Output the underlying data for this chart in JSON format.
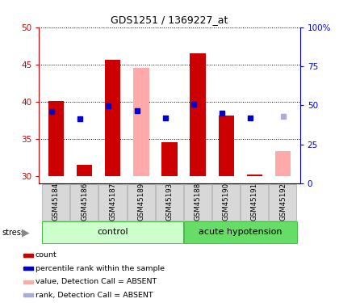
{
  "title": "GDS1251 / 1369227_at",
  "samples": [
    "GSM45184",
    "GSM45186",
    "GSM45187",
    "GSM45189",
    "GSM45193",
    "GSM45188",
    "GSM45190",
    "GSM45191",
    "GSM45192"
  ],
  "red_bars": [
    40.1,
    31.5,
    45.6,
    null,
    34.5,
    46.5,
    38.1,
    30.2,
    null
  ],
  "red_bar_bottom": [
    30,
    30,
    30,
    null,
    30,
    30,
    30,
    30,
    null
  ],
  "pink_bars": [
    null,
    null,
    null,
    44.5,
    null,
    null,
    null,
    null,
    33.3
  ],
  "pink_bar_bottom": [
    null,
    null,
    null,
    30,
    null,
    null,
    null,
    null,
    30
  ],
  "blue_squares": [
    38.7,
    37.7,
    39.4,
    38.8,
    37.8,
    39.6,
    38.4,
    37.8,
    null
  ],
  "light_blue_squares": [
    null,
    null,
    null,
    null,
    null,
    null,
    null,
    null,
    38.0
  ],
  "ylim_left": [
    29,
    50
  ],
  "ylim_right": [
    0,
    100
  ],
  "yticks_left": [
    30,
    35,
    40,
    45,
    50
  ],
  "yticks_right": [
    0,
    25,
    50,
    75,
    100
  ],
  "ytick_labels_right": [
    "0",
    "25",
    "50",
    "75",
    "100%"
  ],
  "bar_width": 0.55,
  "legend_colors": [
    "#cc0000",
    "#0000cc",
    "#ffaaaa",
    "#aaaadd"
  ],
  "legend_labels": [
    "count",
    "percentile rank within the sample",
    "value, Detection Call = ABSENT",
    "rank, Detection Call = ABSENT"
  ],
  "ctrl_color": "#ccffcc",
  "ah_color": "#66dd66",
  "label_bg_color": "#d8d8d8",
  "grid_color": "#000000"
}
